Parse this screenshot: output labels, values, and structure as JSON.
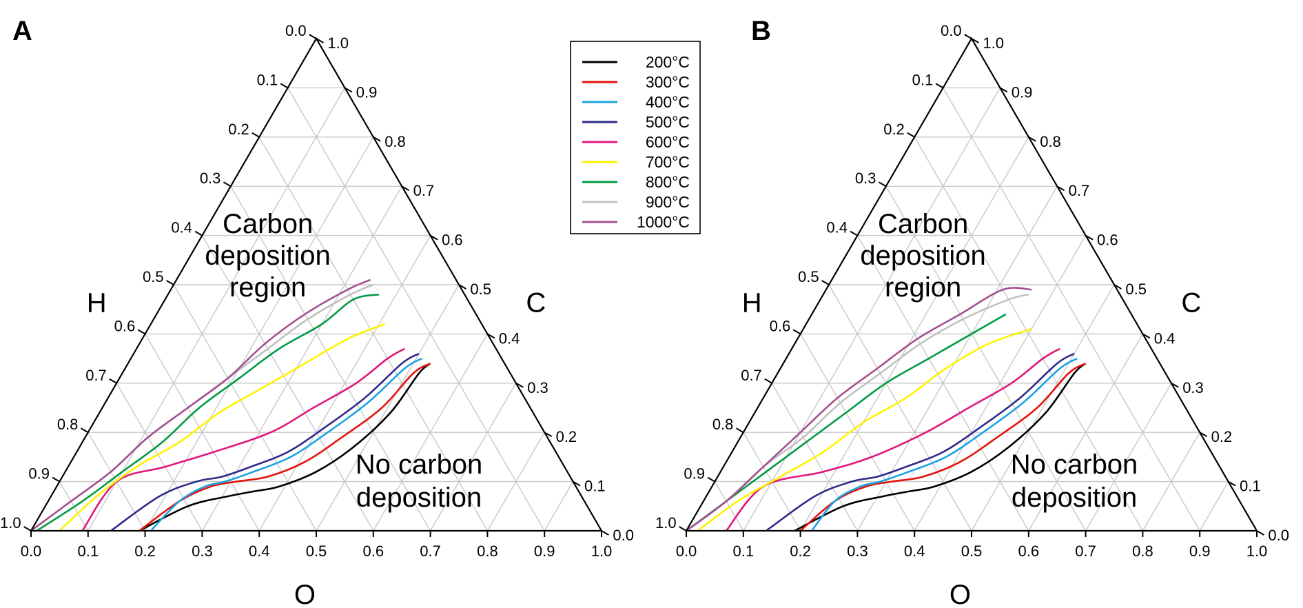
{
  "chart_data": [
    {
      "type": "ternary-line",
      "panel": "A",
      "axes": {
        "left": "H",
        "right": "C",
        "bottom": "O"
      },
      "ticks": [
        "0.0",
        "0.1",
        "0.2",
        "0.3",
        "0.4",
        "0.5",
        "0.6",
        "0.7",
        "0.8",
        "0.9",
        "1.0"
      ],
      "region_upper": [
        "Carbon",
        "deposition",
        "region"
      ],
      "region_lower": [
        "No carbon",
        "deposition"
      ],
      "series": [
        {
          "name": "200°C",
          "color": "#000000",
          "points": [
            [
              0.81,
              0.0
            ],
            [
              0.7,
              0.05
            ],
            [
              0.62,
              0.07
            ],
            [
              0.57,
              0.08
            ],
            [
              0.52,
              0.09
            ],
            [
              0.44,
              0.12
            ],
            [
              0.35,
              0.17
            ],
            [
              0.25,
              0.24
            ],
            [
              0.16,
              0.32
            ],
            [
              0.13,
              0.34
            ]
          ]
        },
        {
          "name": "300°C",
          "color": "#e3140c",
          "points": [
            [
              0.81,
              0.0
            ],
            [
              0.71,
              0.06
            ],
            [
              0.64,
              0.09
            ],
            [
              0.59,
              0.1
            ],
            [
              0.53,
              0.11
            ],
            [
              0.45,
              0.14
            ],
            [
              0.36,
              0.19
            ],
            [
              0.26,
              0.25
            ],
            [
              0.17,
              0.32
            ],
            [
              0.13,
              0.34
            ]
          ]
        },
        {
          "name": "400°C",
          "color": "#1ba1e2",
          "points": [
            [
              0.79,
              0.0
            ],
            [
              0.71,
              0.06
            ],
            [
              0.65,
              0.09
            ],
            [
              0.61,
              0.1
            ],
            [
              0.55,
              0.12
            ],
            [
              0.47,
              0.15
            ],
            [
              0.38,
              0.2
            ],
            [
              0.28,
              0.26
            ],
            [
              0.18,
              0.33
            ],
            [
              0.14,
              0.35
            ]
          ]
        },
        {
          "name": "500°C",
          "color": "#2e2a8a",
          "points": [
            [
              0.86,
              0.0
            ],
            [
              0.74,
              0.07
            ],
            [
              0.66,
              0.1
            ],
            [
              0.61,
              0.11
            ],
            [
              0.55,
              0.13
            ],
            [
              0.47,
              0.16
            ],
            [
              0.38,
              0.21
            ],
            [
              0.28,
              0.27
            ],
            [
              0.18,
              0.34
            ],
            [
              0.14,
              0.36
            ]
          ]
        },
        {
          "name": "600°C",
          "color": "#e0167b",
          "points": [
            [
              0.91,
              0.0
            ],
            [
              0.8,
              0.1
            ],
            [
              0.7,
              0.13
            ],
            [
              0.6,
              0.16
            ],
            [
              0.48,
              0.2
            ],
            [
              0.38,
              0.25
            ],
            [
              0.28,
              0.3
            ],
            [
              0.2,
              0.35
            ],
            [
              0.16,
              0.37
            ]
          ]
        },
        {
          "name": "700°C",
          "color": "#fff200",
          "points": [
            [
              0.95,
              0.0
            ],
            [
              0.85,
              0.07
            ],
            [
              0.75,
              0.13
            ],
            [
              0.65,
              0.18
            ],
            [
              0.55,
              0.24
            ],
            [
              0.45,
              0.29
            ],
            [
              0.35,
              0.34
            ],
            [
              0.25,
              0.39
            ],
            [
              0.17,
              0.42
            ]
          ]
        },
        {
          "name": "800°C",
          "color": "#009a44",
          "points": [
            [
              0.99,
              0.0
            ],
            [
              0.88,
              0.06
            ],
            [
              0.78,
              0.12
            ],
            [
              0.68,
              0.18
            ],
            [
              0.58,
              0.25
            ],
            [
              0.48,
              0.31
            ],
            [
              0.38,
              0.37
            ],
            [
              0.28,
              0.42
            ],
            [
              0.2,
              0.47
            ],
            [
              0.15,
              0.48
            ]
          ]
        },
        {
          "name": "900°C",
          "color": "#c0c0c0",
          "points": [
            [
              1.0,
              0.0
            ],
            [
              0.9,
              0.06
            ],
            [
              0.8,
              0.12
            ],
            [
              0.7,
              0.19
            ],
            [
              0.6,
              0.25
            ],
            [
              0.5,
              0.31
            ],
            [
              0.4,
              0.37
            ],
            [
              0.3,
              0.43
            ],
            [
              0.2,
              0.48
            ],
            [
              0.15,
              0.5
            ]
          ]
        },
        {
          "name": "1000°C",
          "color": "#a4508f",
          "points": [
            [
              1.0,
              0.0
            ],
            [
              0.9,
              0.06
            ],
            [
              0.8,
              0.12
            ],
            [
              0.7,
              0.19
            ],
            [
              0.6,
              0.25
            ],
            [
              0.5,
              0.31
            ],
            [
              0.4,
              0.38
            ],
            [
              0.3,
              0.44
            ],
            [
              0.2,
              0.49
            ],
            [
              0.15,
              0.51
            ]
          ]
        }
      ]
    },
    {
      "type": "ternary-line",
      "panel": "B",
      "axes": {
        "left": "H",
        "right": "C",
        "bottom": "O"
      },
      "ticks": [
        "0.0",
        "0.1",
        "0.2",
        "0.3",
        "0.4",
        "0.5",
        "0.6",
        "0.7",
        "0.8",
        "0.9",
        "1.0"
      ],
      "region_upper": [
        "Carbon",
        "deposition",
        "region"
      ],
      "region_lower": [
        "No carbon",
        "deposition"
      ],
      "series": [
        {
          "name": "200°C",
          "color": "#000000",
          "points": [
            [
              0.81,
              0.0
            ],
            [
              0.7,
              0.05
            ],
            [
              0.62,
              0.07
            ],
            [
              0.57,
              0.08
            ],
            [
              0.52,
              0.09
            ],
            [
              0.44,
              0.12
            ],
            [
              0.35,
              0.17
            ],
            [
              0.25,
              0.24
            ],
            [
              0.16,
              0.32
            ],
            [
              0.13,
              0.34
            ]
          ]
        },
        {
          "name": "300°C",
          "color": "#e3140c",
          "points": [
            [
              0.8,
              0.0
            ],
            [
              0.71,
              0.06
            ],
            [
              0.64,
              0.09
            ],
            [
              0.59,
              0.1
            ],
            [
              0.53,
              0.11
            ],
            [
              0.45,
              0.14
            ],
            [
              0.36,
              0.19
            ],
            [
              0.26,
              0.25
            ],
            [
              0.17,
              0.32
            ],
            [
              0.13,
              0.34
            ]
          ]
        },
        {
          "name": "400°C",
          "color": "#1ba1e2",
          "points": [
            [
              0.78,
              0.0
            ],
            [
              0.71,
              0.06
            ],
            [
              0.65,
              0.09
            ],
            [
              0.61,
              0.1
            ],
            [
              0.55,
              0.12
            ],
            [
              0.47,
              0.15
            ],
            [
              0.38,
              0.2
            ],
            [
              0.28,
              0.26
            ],
            [
              0.18,
              0.33
            ],
            [
              0.14,
              0.35
            ]
          ]
        },
        {
          "name": "500°C",
          "color": "#2e2a8a",
          "points": [
            [
              0.86,
              0.0
            ],
            [
              0.74,
              0.07
            ],
            [
              0.66,
              0.1
            ],
            [
              0.61,
              0.11
            ],
            [
              0.55,
              0.13
            ],
            [
              0.47,
              0.16
            ],
            [
              0.38,
              0.21
            ],
            [
              0.28,
              0.27
            ],
            [
              0.18,
              0.34
            ],
            [
              0.14,
              0.36
            ]
          ]
        },
        {
          "name": "600°C",
          "color": "#e0167b",
          "points": [
            [
              0.93,
              0.0
            ],
            [
              0.82,
              0.09
            ],
            [
              0.7,
              0.12
            ],
            [
              0.6,
              0.15
            ],
            [
              0.48,
              0.2
            ],
            [
              0.38,
              0.25
            ],
            [
              0.28,
              0.3
            ],
            [
              0.2,
              0.35
            ],
            [
              0.16,
              0.37
            ]
          ]
        },
        {
          "name": "700°C",
          "color": "#fff200",
          "points": [
            [
              0.98,
              0.0
            ],
            [
              0.88,
              0.06
            ],
            [
              0.78,
              0.11
            ],
            [
              0.68,
              0.16
            ],
            [
              0.58,
              0.22
            ],
            [
              0.48,
              0.27
            ],
            [
              0.38,
              0.33
            ],
            [
              0.28,
              0.38
            ],
            [
              0.19,
              0.41
            ]
          ]
        },
        {
          "name": "800°C",
          "color": "#009a44",
          "points": [
            [
              1.0,
              0.0
            ],
            [
              0.9,
              0.06
            ],
            [
              0.8,
              0.12
            ],
            [
              0.7,
              0.18
            ],
            [
              0.6,
              0.24
            ],
            [
              0.5,
              0.3
            ],
            [
              0.4,
              0.35
            ],
            [
              0.3,
              0.4
            ],
            [
              0.22,
              0.44
            ]
          ]
        },
        {
          "name": "900°C",
          "color": "#c0c0c0",
          "points": [
            [
              1.0,
              0.0
            ],
            [
              0.9,
              0.06
            ],
            [
              0.8,
              0.13
            ],
            [
              0.7,
              0.19
            ],
            [
              0.6,
              0.26
            ],
            [
              0.5,
              0.32
            ],
            [
              0.4,
              0.38
            ],
            [
              0.3,
              0.43
            ],
            [
              0.2,
              0.47
            ],
            [
              0.16,
              0.48
            ]
          ]
        },
        {
          "name": "1000°C",
          "color": "#a4508f",
          "points": [
            [
              1.0,
              0.0
            ],
            [
              0.9,
              0.06
            ],
            [
              0.8,
              0.13
            ],
            [
              0.7,
              0.2
            ],
            [
              0.6,
              0.27
            ],
            [
              0.5,
              0.33
            ],
            [
              0.4,
              0.39
            ],
            [
              0.3,
              0.44
            ],
            [
              0.2,
              0.49
            ],
            [
              0.15,
              0.49
            ]
          ]
        }
      ]
    }
  ],
  "legend": {
    "entries": [
      {
        "label": "200°C",
        "color": "#000000"
      },
      {
        "label": "300°C",
        "color": "#e3140c"
      },
      {
        "label": "400°C",
        "color": "#1ba1e2"
      },
      {
        "label": "500°C",
        "color": "#2e2a8a"
      },
      {
        "label": "600°C",
        "color": "#e0167b"
      },
      {
        "label": "700°C",
        "color": "#fff200"
      },
      {
        "label": "800°C",
        "color": "#009a44"
      },
      {
        "label": "900°C",
        "color": "#c0c0c0"
      },
      {
        "label": "1000°C",
        "color": "#a4508f"
      }
    ]
  }
}
